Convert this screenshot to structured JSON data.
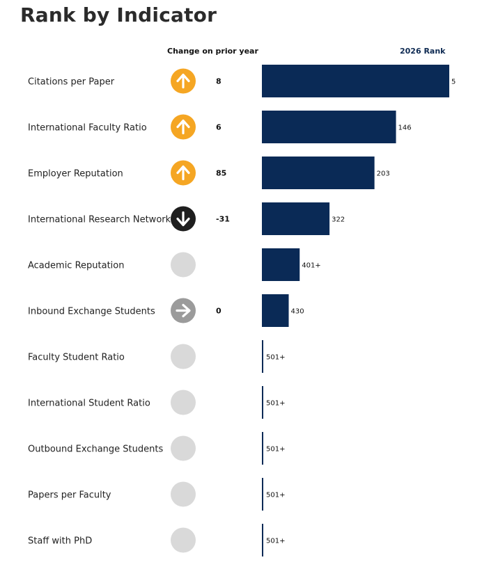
{
  "page": {
    "title": "Rank by Indicator",
    "change_header": "Change on prior year",
    "rank_header": "2026 Rank"
  },
  "colors": {
    "bar": "#0a2a56",
    "up": "#f5a623",
    "down": "#1e1e1e",
    "flat": "#9b9b9b",
    "none": "#d9d9d9"
  },
  "chart_data": {
    "type": "bar",
    "orientation": "horizontal",
    "title": "Rank by Indicator",
    "categories": [
      "Citations per Paper",
      "International Faculty Ratio",
      "Employer Reputation",
      "International Research Network",
      "Academic Reputation",
      "Inbound Exchange Students",
      "Faculty Student Ratio",
      "International Student Ratio",
      "Outbound Exchange Students",
      "Papers per Faculty",
      "Staff with PhD"
    ],
    "series": [
      {
        "name": "2026 Rank",
        "values": [
          5,
          146,
          203,
          322,
          401,
          430,
          501,
          501,
          501,
          501,
          501
        ]
      }
    ],
    "rank_labels": [
      "5",
      "146",
      "203",
      "322",
      "401+",
      "430",
      "501+",
      "501+",
      "501+",
      "501+",
      "501+"
    ],
    "change_values": [
      "8",
      "6",
      "85",
      "-31",
      "",
      "0",
      "",
      "",
      "",
      "",
      ""
    ],
    "change_direction": [
      "up",
      "up",
      "up",
      "down",
      "none",
      "flat",
      "none",
      "none",
      "none",
      "none",
      "none"
    ],
    "xlim": [
      0,
      501
    ]
  }
}
